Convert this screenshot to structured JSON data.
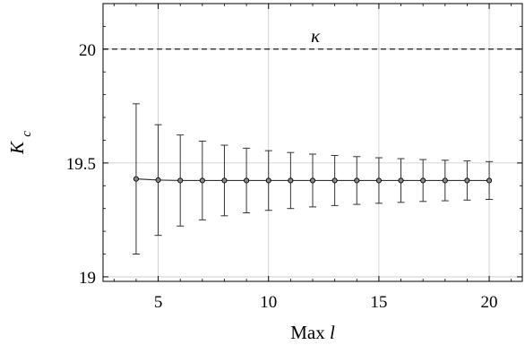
{
  "chart_data": {
    "type": "line",
    "xlabel": "Max",
    "xlabel_var": "l",
    "ylabel": "K",
    "ylabel_sub": "c",
    "xlim": [
      2.5,
      21.5
    ],
    "ylim": [
      18.98,
      20.2
    ],
    "xticks": [
      5,
      10,
      15,
      20
    ],
    "xtick_labels": [
      "5",
      "10",
      "15",
      "20"
    ],
    "yticks": [
      19,
      19.5,
      20
    ],
    "ytick_labels": [
      "19",
      "19.5",
      "20"
    ],
    "minor_xticks": [
      3,
      4,
      6,
      7,
      8,
      9,
      11,
      12,
      13,
      14,
      16,
      17,
      18,
      19,
      21
    ],
    "minor_yticks": [
      19.1,
      19.2,
      19.3,
      19.4,
      19.6,
      19.7,
      19.8,
      19.9,
      20.1
    ],
    "grid": true,
    "series": [
      {
        "x": [
          4,
          5,
          6,
          7,
          8,
          9,
          10,
          11,
          12,
          13,
          14,
          15,
          16,
          17,
          18,
          19,
          20
        ],
        "y": [
          19.43,
          19.425,
          19.423,
          19.423,
          19.423,
          19.423,
          19.423,
          19.423,
          19.423,
          19.423,
          19.423,
          19.423,
          19.423,
          19.423,
          19.423,
          19.423,
          19.423
        ],
        "err": [
          0.33,
          0.243,
          0.2,
          0.173,
          0.155,
          0.142,
          0.131,
          0.123,
          0.116,
          0.11,
          0.105,
          0.1,
          0.096,
          0.092,
          0.089,
          0.086,
          0.083
        ],
        "color": "#333333"
      }
    ],
    "reference_line": {
      "y": 20,
      "label": "κ",
      "style": "dashed"
    }
  }
}
